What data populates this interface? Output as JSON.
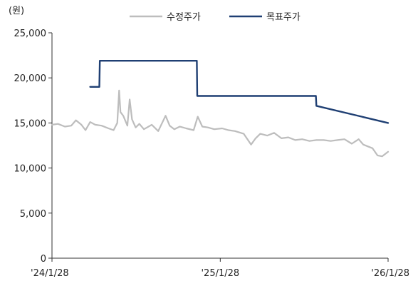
{
  "chart_data": {
    "type": "line",
    "unit_label": "(원)",
    "ylim": [
      0,
      25000
    ],
    "y_ticks": [
      {
        "value": 0,
        "label": "0"
      },
      {
        "value": 5000,
        "label": "5,000"
      },
      {
        "value": 10000,
        "label": "10,000"
      },
      {
        "value": 15000,
        "label": "15,000"
      },
      {
        "value": 20000,
        "label": "20,000"
      },
      {
        "value": 25000,
        "label": "25,000"
      }
    ],
    "xlim": [
      "2024-01-28",
      "2026-01-28"
    ],
    "x_ticks": [
      {
        "value": "2024-01-28",
        "label": "'24/1/28"
      },
      {
        "value": "2025-01-28",
        "label": "'25/1/28"
      },
      {
        "value": "2026-01-28",
        "label": "'26/1/28"
      }
    ],
    "legend_position": "top",
    "grid": false,
    "series": [
      {
        "name": "수정주가",
        "color": "#bdbdbd",
        "x": [
          "2024-01-28",
          "2024-02-10",
          "2024-02-25",
          "2024-03-10",
          "2024-03-20",
          "2024-04-01",
          "2024-04-10",
          "2024-04-20",
          "2024-05-01",
          "2024-05-15",
          "2024-05-30",
          "2024-06-10",
          "2024-06-18",
          "2024-06-22",
          "2024-06-25",
          "2024-07-01",
          "2024-07-10",
          "2024-07-15",
          "2024-07-20",
          "2024-07-28",
          "2024-08-05",
          "2024-08-15",
          "2024-09-01",
          "2024-09-15",
          "2024-10-01",
          "2024-10-10",
          "2024-10-20",
          "2024-11-01",
          "2024-11-15",
          "2024-12-01",
          "2024-12-10",
          "2024-12-20",
          "2025-01-01",
          "2025-01-15",
          "2025-02-01",
          "2025-02-15",
          "2025-03-01",
          "2025-03-20",
          "2025-04-05",
          "2025-04-15",
          "2025-04-25",
          "2025-05-10",
          "2025-05-25",
          "2025-06-10",
          "2025-06-25",
          "2025-07-10",
          "2025-07-25",
          "2025-08-10",
          "2025-08-25",
          "2025-09-10",
          "2025-09-25",
          "2025-10-10",
          "2025-10-25",
          "2025-11-10",
          "2025-11-25",
          "2025-12-05",
          "2025-12-15",
          "2025-12-25",
          "2026-01-05",
          "2026-01-15",
          "2026-01-28"
        ],
        "values": [
          14800,
          14900,
          14600,
          14700,
          15300,
          14800,
          14200,
          15100,
          14800,
          14700,
          14400,
          14200,
          15000,
          18600,
          16200,
          15800,
          14700,
          17600,
          15400,
          14500,
          14900,
          14300,
          14800,
          14100,
          15800,
          14700,
          14300,
          14600,
          14400,
          14200,
          15700,
          14600,
          14500,
          14300,
          14400,
          14200,
          14100,
          13800,
          12600,
          13300,
          13800,
          13600,
          13900,
          13300,
          13400,
          13100,
          13200,
          13000,
          13100,
          13100,
          13000,
          13100,
          13200,
          12700,
          13200,
          12600,
          12400,
          12200,
          11400,
          11300,
          11800
        ]
      },
      {
        "name": "목표주가",
        "color": "#1f3f73",
        "step": true,
        "x": [
          "2024-04-20",
          "2024-05-10",
          "2024-05-11",
          "2024-12-08",
          "2024-12-09",
          "2025-08-24",
          "2025-08-25",
          "2026-01-28"
        ],
        "values": [
          19000,
          19000,
          21900,
          21900,
          18000,
          18000,
          16900,
          15000
        ]
      }
    ]
  }
}
